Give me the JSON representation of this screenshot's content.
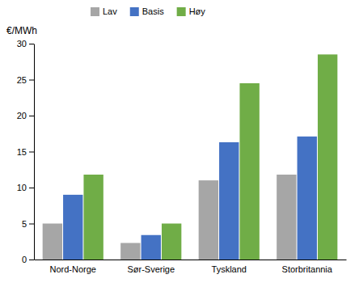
{
  "chart_data": {
    "type": "bar",
    "ylabel": "€/MWh",
    "categories": [
      "Nord-Norge",
      "Sør-Sverige",
      "Tyskland",
      "Storbritannia"
    ],
    "series": [
      {
        "name": "Lav",
        "color": "#a6a6a6",
        "values": [
          5.0,
          2.3,
          11.0,
          11.8
        ]
      },
      {
        "name": "Basis",
        "color": "#4472c4",
        "values": [
          9.0,
          3.4,
          16.3,
          17.1
        ]
      },
      {
        "name": "Høy",
        "color": "#70ad47",
        "values": [
          11.8,
          5.0,
          24.5,
          28.5
        ]
      }
    ],
    "ylim": [
      0,
      30
    ],
    "yticks": [
      0,
      5,
      10,
      15,
      20,
      25,
      30
    ],
    "grid": false,
    "legend": "top"
  }
}
